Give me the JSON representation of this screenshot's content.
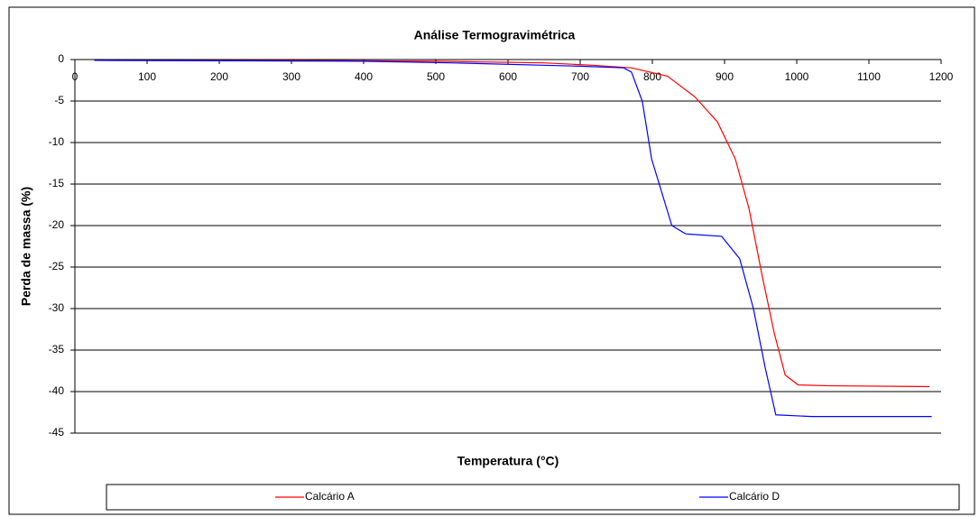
{
  "chart_data": {
    "type": "line",
    "title": "Análise Termogravimétrica",
    "x_label": "Temperatura (°C)",
    "y_label": "Perda de massa (%)",
    "xlim": [
      0,
      1200
    ],
    "xticks": [
      0,
      100,
      200,
      300,
      400,
      500,
      600,
      700,
      800,
      900,
      1000,
      1100,
      1200
    ],
    "ylim": [
      -45,
      0
    ],
    "yticks": [
      0,
      -5,
      -10,
      -15,
      -20,
      -25,
      -30,
      -35,
      -40,
      -45
    ],
    "grid": true,
    "legend": "bottom",
    "series": [
      {
        "name": "Calcário A",
        "color": "#ff0000",
        "x": [
          27,
          300,
          500,
          650,
          720,
          771,
          821,
          859,
          890,
          915,
          934,
          952,
          969,
          984,
          1002,
          1046,
          1184
        ],
        "values": [
          -0.1,
          -0.1,
          -0.2,
          -0.4,
          -0.7,
          -1,
          -2,
          -4.5,
          -7.5,
          -12,
          -18,
          -26,
          -33,
          -38,
          -39.2,
          -39.3,
          -39.4
        ]
      },
      {
        "name": "Calcário D",
        "color": "#0000ff",
        "x": [
          27,
          400,
          520,
          700,
          760,
          771,
          786,
          799,
          827,
          846,
          896,
          921,
          940,
          956,
          971,
          1020,
          1187
        ],
        "values": [
          -0.1,
          -0.2,
          -0.4,
          -0.8,
          -1,
          -1.5,
          -5,
          -12,
          -20,
          -21,
          -21.3,
          -24,
          -30,
          -37,
          -42.8,
          -43,
          -43
        ]
      }
    ]
  }
}
